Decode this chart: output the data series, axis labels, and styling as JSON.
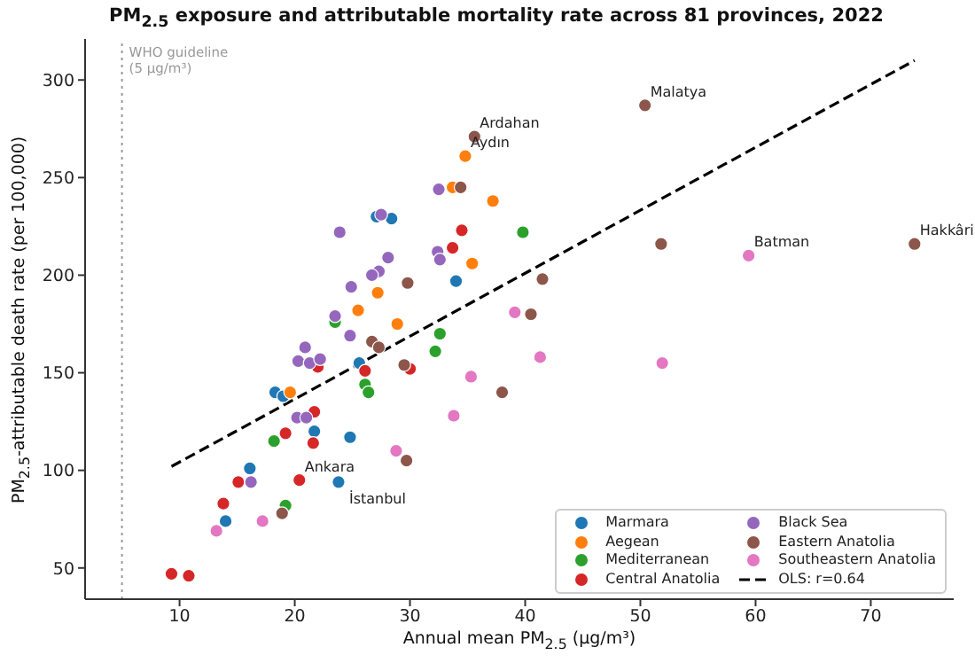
{
  "chart_data": {
    "type": "scatter",
    "title": "PM$_{2.5}$ exposure and attributable mortality rate across 81 provinces, 2022",
    "xlabel": "Annual mean PM$_{2.5}$ (μg/m³)",
    "ylabel": "PM$_{2.5}$-attributable death rate (per 100,000)",
    "xlim": [
      1.8,
      77.2
    ],
    "ylim": [
      34,
      321
    ],
    "xticks": [
      10,
      20,
      30,
      40,
      50,
      60,
      70
    ],
    "yticks": [
      50,
      100,
      150,
      200,
      250,
      300
    ],
    "legend": "bottom right",
    "marker": "circle",
    "ref_lines": [
      {
        "axis": "x",
        "value": 5,
        "label": "WHO guideline\n(5 μg/m³)",
        "color": "#999999",
        "line_style": "dotted"
      }
    ],
    "annotations": [
      {
        "text": "Malatya",
        "x": 50.4,
        "y": 287
      },
      {
        "text": "Ardahan",
        "x": 35.6,
        "y": 271
      },
      {
        "text": "Aydın",
        "x": 34.8,
        "y": 261
      },
      {
        "text": "Batman",
        "x": 59.4,
        "y": 210
      },
      {
        "text": "Hakkâri",
        "x": 73.8,
        "y": 216
      },
      {
        "text": "Ankara",
        "x": 20.4,
        "y": 95
      },
      {
        "text": "İstanbul",
        "x": 23.8,
        "y": 94
      }
    ],
    "series": [
      {
        "name": "Marmara",
        "color": "#1f77b4",
        "x": [
          27.1,
          28.4,
          34.0,
          25.6,
          18.3,
          19.0,
          21.7,
          24.8,
          16.1,
          23.8,
          14.0
        ],
        "values": [
          230,
          229,
          197,
          155,
          140,
          138,
          120,
          117,
          101,
          94,
          74
        ]
      },
      {
        "name": "Aegean",
        "color": "#ff7f0e",
        "x": [
          34.8,
          33.7,
          37.2,
          35.4,
          27.2,
          25.5,
          28.9,
          19.6
        ],
        "values": [
          261,
          245,
          238,
          206,
          191,
          182,
          175,
          140
        ]
      },
      {
        "name": "Mediterranean",
        "color": "#2ca02c",
        "x": [
          39.8,
          23.5,
          32.6,
          32.2,
          26.1,
          26.4,
          18.2,
          19.2
        ],
        "values": [
          222,
          176,
          170,
          161,
          144,
          140,
          115,
          82
        ]
      },
      {
        "name": "Central Anatolia",
        "color": "#d62728",
        "x": [
          34.5,
          33.7,
          22.0,
          26.1,
          30.0,
          21.7,
          19.2,
          21.6,
          20.4,
          15.1,
          13.8,
          9.3,
          10.8
        ],
        "values": [
          223,
          214,
          153,
          151,
          152,
          130,
          119,
          114,
          95,
          94,
          83,
          47,
          46
        ]
      },
      {
        "name": "Black Sea",
        "color": "#9467bd",
        "x": [
          32.5,
          27.5,
          23.9,
          32.4,
          32.6,
          28.1,
          27.3,
          26.7,
          24.9,
          23.5,
          24.8,
          20.9,
          20.3,
          21.3,
          22.2,
          20.2,
          21.0,
          16.2
        ],
        "values": [
          244,
          231,
          222,
          212,
          208,
          209,
          202,
          200,
          194,
          179,
          169,
          163,
          156,
          155,
          157,
          127,
          127,
          94
        ]
      },
      {
        "name": "Eastern Anatolia",
        "color": "#8c564b",
        "x": [
          35.6,
          34.4,
          29.8,
          41.5,
          40.5,
          26.7,
          27.3,
          29.5,
          38.0,
          29.7,
          18.9,
          50.4,
          51.8,
          73.8
        ],
        "values": [
          271,
          245,
          196,
          198,
          180,
          166,
          163,
          154,
          140,
          105,
          78,
          287,
          216,
          216
        ]
      },
      {
        "name": "Southeastern Anatolia",
        "color": "#e377c2",
        "x": [
          39.1,
          41.3,
          35.3,
          33.8,
          28.8,
          17.2,
          13.2,
          59.4,
          51.9
        ],
        "values": [
          181,
          158,
          148,
          128,
          110,
          74,
          69,
          210,
          155
        ]
      },
      {
        "name": "OLS: r=0.64",
        "type": "line",
        "color": "#000000",
        "line_style": "dashed",
        "marker": "none",
        "x": [
          9.3,
          73.8
        ],
        "values": [
          102,
          310
        ]
      }
    ]
  }
}
